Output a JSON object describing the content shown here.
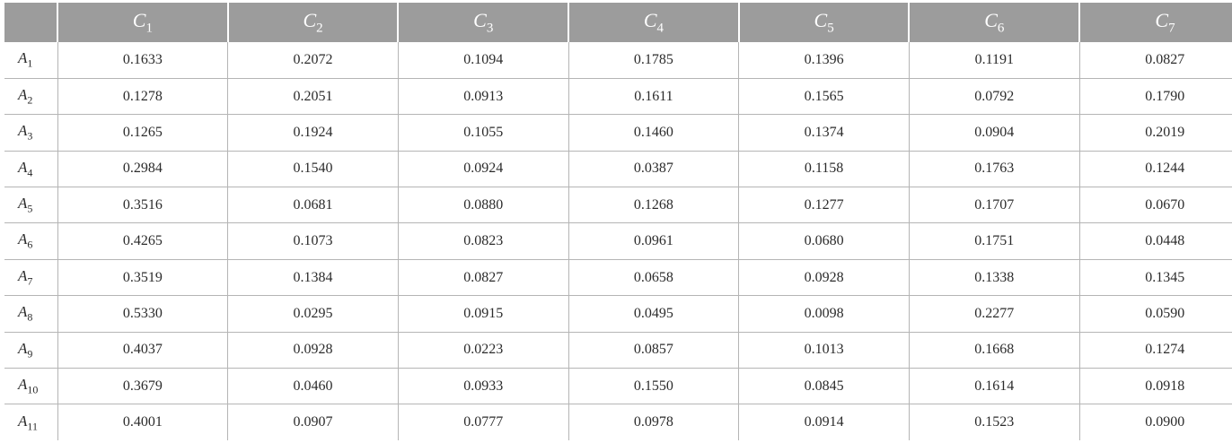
{
  "table": {
    "corner": "",
    "columns": [
      {
        "letter": "C",
        "sub": "1"
      },
      {
        "letter": "C",
        "sub": "2"
      },
      {
        "letter": "C",
        "sub": "3"
      },
      {
        "letter": "C",
        "sub": "4"
      },
      {
        "letter": "C",
        "sub": "5"
      },
      {
        "letter": "C",
        "sub": "6"
      },
      {
        "letter": "C",
        "sub": "7"
      }
    ],
    "rows": [
      {
        "letter": "A",
        "sub": "1",
        "values": [
          "0.1633",
          "0.2072",
          "0.1094",
          "0.1785",
          "0.1396",
          "0.1191",
          "0.0827"
        ]
      },
      {
        "letter": "A",
        "sub": "2",
        "values": [
          "0.1278",
          "0.2051",
          "0.0913",
          "0.1611",
          "0.1565",
          "0.0792",
          "0.1790"
        ]
      },
      {
        "letter": "A",
        "sub": "3",
        "values": [
          "0.1265",
          "0.1924",
          "0.1055",
          "0.1460",
          "0.1374",
          "0.0904",
          "0.2019"
        ]
      },
      {
        "letter": "A",
        "sub": "4",
        "values": [
          "0.2984",
          "0.1540",
          "0.0924",
          "0.0387",
          "0.1158",
          "0.1763",
          "0.1244"
        ]
      },
      {
        "letter": "A",
        "sub": "5",
        "values": [
          "0.3516",
          "0.0681",
          "0.0880",
          "0.1268",
          "0.1277",
          "0.1707",
          "0.0670"
        ]
      },
      {
        "letter": "A",
        "sub": "6",
        "values": [
          "0.4265",
          "0.1073",
          "0.0823",
          "0.0961",
          "0.0680",
          "0.1751",
          "0.0448"
        ]
      },
      {
        "letter": "A",
        "sub": "7",
        "values": [
          "0.3519",
          "0.1384",
          "0.0827",
          "0.0658",
          "0.0928",
          "0.1338",
          "0.1345"
        ]
      },
      {
        "letter": "A",
        "sub": "8",
        "values": [
          "0.5330",
          "0.0295",
          "0.0915",
          "0.0495",
          "0.0098",
          "0.2277",
          "0.0590"
        ]
      },
      {
        "letter": "A",
        "sub": "9",
        "values": [
          "0.4037",
          "0.0928",
          "0.0223",
          "0.0857",
          "0.1013",
          "0.1668",
          "0.1274"
        ]
      },
      {
        "letter": "A",
        "sub": "10",
        "values": [
          "0.3679",
          "0.0460",
          "0.0933",
          "0.1550",
          "0.0845",
          "0.1614",
          "0.0918"
        ]
      },
      {
        "letter": "A",
        "sub": "11",
        "values": [
          "0.4001",
          "0.0907",
          "0.0777",
          "0.0978",
          "0.0914",
          "0.1523",
          "0.0900"
        ]
      }
    ]
  }
}
